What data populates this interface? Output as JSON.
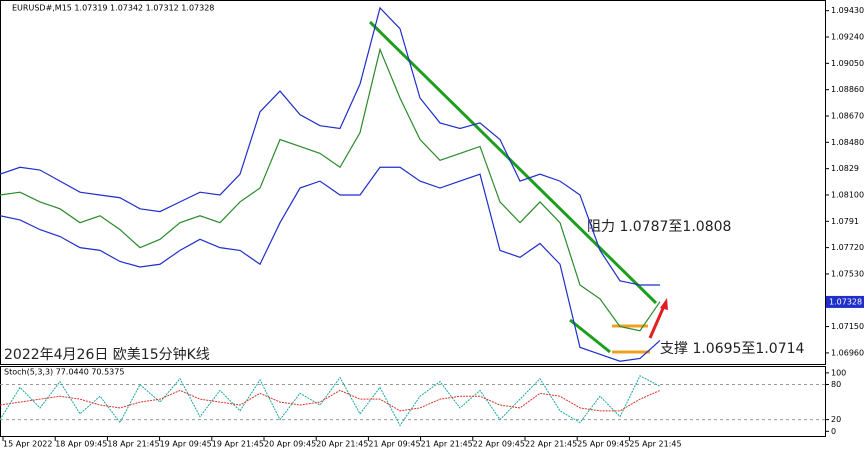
{
  "header": "EURUSD#,M15  1.07319 1.07342 1.07312 1.07328",
  "chart_data": [
    {
      "type": "line",
      "x": [
        0,
        1,
        2,
        3,
        4,
        5,
        6,
        7,
        8,
        9,
        10,
        11,
        12,
        13,
        14,
        15,
        16,
        17,
        18,
        19,
        20,
        21,
        22,
        23,
        24,
        25,
        26,
        27,
        28,
        29,
        30,
        31,
        32,
        33
      ],
      "xlim": [
        0,
        41.25
      ],
      "ylim": [
        1.0688,
        1.095
      ],
      "yticks": [
        {
          "value": 1.0943,
          "label": "1.09430"
        },
        {
          "value": 1.0924,
          "label": "1.09240"
        },
        {
          "value": 1.0905,
          "label": "1.09050"
        },
        {
          "value": 1.0886,
          "label": "1.08860"
        },
        {
          "value": 1.0867,
          "label": "1.08670"
        },
        {
          "value": 1.0848,
          "label": "1.08480"
        },
        1.0829,
        {
          "value": 1.081,
          "label": "1.08100"
        },
        1.0791,
        {
          "value": 1.0772,
          "label": "1.07720"
        },
        {
          "value": 1.0753,
          "label": "1.07530"
        },
        {
          "value": 1.0734,
          "label": "1.07340"
        },
        {
          "value": 1.0715,
          "label": "1.07150"
        },
        {
          "value": 1.0696,
          "label": "1.06960"
        }
      ],
      "last_price": 1.07328,
      "x_labels": [
        "15 Apr 2022",
        "18 Apr 09:45",
        "18 Apr 21:45",
        "19 Apr 09:45",
        "19 Apr 21:45",
        "20 Apr 09:45",
        "20 Apr 21:45",
        "21 Apr 09:45",
        "21 Apr 21:45",
        "22 Apr 09:45",
        "22 Apr 21:45",
        "25 Apr 09:45",
        "25 Apr 21:45"
      ],
      "annotations": [
        "2022年4月26日 欧美15分钟K线",
        "阻力 1.0787至1.0808",
        "支撑 1.0695至1.0714"
      ],
      "series": [
        {
          "color": "#2a8a2a",
          "values": [
            1.081,
            1.0812,
            1.0805,
            1.08,
            1.079,
            1.0795,
            1.0785,
            1.0772,
            1.0778,
            1.079,
            1.0795,
            1.079,
            1.0805,
            1.0815,
            1.085,
            1.0845,
            1.084,
            1.083,
            1.0855,
            1.0915,
            1.088,
            1.085,
            1.0835,
            1.084,
            1.0845,
            1.0805,
            1.079,
            1.0805,
            1.079,
            1.0745,
            1.0735,
            1.0715,
            1.0712,
            1.0733
          ]
        },
        {
          "color": "#1f2fc9",
          "values": [
            1.0825,
            1.083,
            1.0828,
            1.082,
            1.0812,
            1.081,
            1.0808,
            1.08,
            1.0798,
            1.0805,
            1.0812,
            1.081,
            1.0825,
            1.087,
            1.0885,
            1.0868,
            1.086,
            1.0858,
            1.089,
            1.0945,
            1.093,
            1.088,
            1.0862,
            1.0858,
            1.0862,
            1.085,
            1.082,
            1.0825,
            1.082,
            1.081,
            1.077,
            1.0748,
            1.0745,
            1.0745
          ]
        },
        {
          "color": "#1f2fc9",
          "values": [
            1.0795,
            1.0792,
            1.0785,
            1.078,
            1.0772,
            1.077,
            1.0762,
            1.0758,
            1.076,
            1.077,
            1.0778,
            1.0772,
            1.077,
            1.076,
            1.079,
            1.0815,
            1.082,
            1.081,
            1.081,
            1.083,
            1.083,
            1.082,
            1.0815,
            1.082,
            1.0825,
            1.077,
            1.0765,
            1.0775,
            1.076,
            1.07,
            1.0695,
            1.069,
            1.0692,
            1.0705
          ]
        }
      ]
    },
    {
      "type": "line",
      "title": "Stoch(5,3,3) 77.0440 70.5375",
      "x": [
        0,
        1,
        2,
        3,
        4,
        5,
        6,
        7,
        8,
        9,
        10,
        11,
        12,
        13,
        14,
        15,
        16,
        17,
        18,
        19,
        20,
        21,
        22,
        23,
        24,
        25,
        26,
        27,
        28,
        29,
        30,
        31,
        32,
        33
      ],
      "xlim": [
        0,
        41.25
      ],
      "ylim": [
        -8,
        110
      ],
      "yticks": [
        100,
        80,
        20,
        0
      ],
      "series": [
        {
          "color": "#1aa89a",
          "values": [
            20,
            75,
            40,
            85,
            30,
            60,
            15,
            80,
            50,
            90,
            25,
            70,
            35,
            88,
            20,
            65,
            45,
            92,
            30,
            75,
            10,
            60,
            85,
            40,
            70,
            20,
            55,
            90,
            35,
            15,
            60,
            25,
            95,
            77
          ]
        },
        {
          "color": "#d9342b",
          "values": [
            45,
            50,
            55,
            60,
            55,
            45,
            40,
            50,
            55,
            70,
            55,
            50,
            45,
            65,
            50,
            45,
            50,
            70,
            55,
            55,
            35,
            40,
            55,
            60,
            60,
            45,
            40,
            65,
            60,
            40,
            35,
            35,
            55,
            70
          ]
        }
      ]
    }
  ]
}
